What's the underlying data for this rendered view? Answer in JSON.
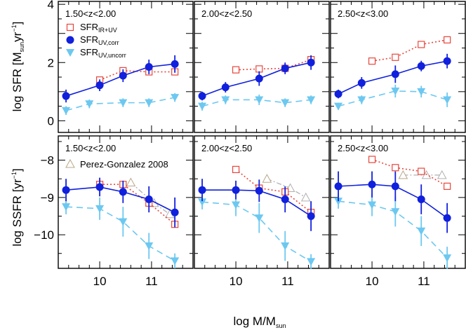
{
  "xlabel": {
    "main": "log M/M",
    "sub": "sun"
  },
  "legend": {
    "items": [
      {
        "key": "ir",
        "main": "SFR",
        "sub": "IR+UV"
      },
      {
        "key": "corr",
        "main": "SFR",
        "sub": "UV,corr"
      },
      {
        "key": "uncorr",
        "main": "SFR",
        "sub": "UV,uncorr"
      }
    ],
    "pg_label": "Perez-Gonzalez 2008"
  },
  "colors": {
    "ir": "#e8463c",
    "corr": "#1020dd",
    "uncorr": "#6cc8f0",
    "pg": "#b0b0b0",
    "pg_first": "#b8a888"
  },
  "chart_data": [
    {
      "type": "line",
      "ylabel": {
        "main": "log SFR [M",
        "sub": "sun",
        "tail": "yr",
        "sup": "−1",
        "close": "]"
      },
      "ylim": [
        -0.4,
        4.1
      ],
      "yticks": [
        0,
        2,
        4
      ],
      "xlim": [
        9.2,
        11.8
      ],
      "xticks": [
        10,
        11
      ],
      "panels": [
        {
          "label": "1.50<z<2.00",
          "series": {
            "ir": {
              "x": [
                10.0,
                10.45,
                10.95,
                11.45
              ],
              "y": [
                1.4,
                1.72,
                1.68,
                1.68
              ]
            },
            "corr": {
              "x": [
                9.35,
                10.0,
                10.45,
                10.95,
                11.45
              ],
              "y": [
                0.85,
                1.22,
                1.55,
                1.85,
                1.95
              ],
              "err": [
                0.22,
                0.2,
                0.22,
                0.25,
                0.3
              ]
            },
            "uncorr": {
              "x": [
                9.35,
                9.8,
                10.45,
                10.95,
                11.45
              ],
              "y": [
                0.35,
                0.58,
                0.62,
                0.62,
                0.8
              ],
              "err": [
                0.15,
                0.15,
                0.15,
                0.15,
                0.15
              ]
            }
          }
        },
        {
          "label": "2.00<z<2.50",
          "series": {
            "ir": {
              "x": [
                10.0,
                10.45,
                10.95,
                11.45
              ],
              "y": [
                1.75,
                1.78,
                1.8,
                2.1
              ]
            },
            "corr": {
              "x": [
                9.35,
                9.8,
                10.45,
                10.95,
                11.45
              ],
              "y": [
                0.85,
                1.15,
                1.45,
                1.8,
                2.0
              ],
              "err": [
                0.15,
                0.18,
                0.25,
                0.2,
                0.25
              ]
            },
            "uncorr": {
              "x": [
                9.35,
                9.8,
                10.45,
                10.95,
                11.45
              ],
              "y": [
                0.5,
                0.72,
                0.72,
                0.62,
                0.72
              ],
              "err": [
                0.15,
                0.15,
                0.18,
                0.15,
                0.15
              ]
            }
          }
        },
        {
          "label": "2.50<z<3.00",
          "series": {
            "ir": {
              "x": [
                10.0,
                10.45,
                10.95,
                11.45
              ],
              "y": [
                2.05,
                2.18,
                2.62,
                2.78
              ]
            },
            "corr": {
              "x": [
                9.35,
                9.8,
                10.45,
                10.95,
                11.45
              ],
              "y": [
                0.92,
                1.3,
                1.6,
                1.88,
                2.05
              ],
              "err": [
                0.15,
                0.2,
                0.3,
                0.18,
                0.25
              ]
            },
            "uncorr": {
              "x": [
                9.35,
                9.8,
                10.45,
                10.95,
                11.45
              ],
              "y": [
                0.5,
                0.72,
                1.02,
                1.0,
                0.72
              ],
              "err": [
                0.12,
                0.15,
                0.22,
                0.2,
                0.25
              ]
            }
          }
        }
      ]
    },
    {
      "type": "line",
      "ylabel": {
        "main": "log SSFR [yr",
        "sup": "−1",
        "close": "]"
      },
      "ylim": [
        -10.9,
        -7.35
      ],
      "yticks": [
        -8,
        -9,
        -10
      ],
      "yticklabels": [
        "−8",
        "−9",
        "−10"
      ],
      "xlim": [
        9.2,
        11.8
      ],
      "xticks": [
        10,
        11
      ],
      "panels": [
        {
          "label": "1.50<z<2.00",
          "series": {
            "ir": {
              "x": [
                10.0,
                10.45,
                10.95,
                11.45
              ],
              "y": [
                -8.65,
                -8.65,
                -9.15,
                -9.72
              ]
            },
            "corr": {
              "x": [
                9.35,
                10.0,
                10.45,
                10.95,
                11.45
              ],
              "y": [
                -8.8,
                -8.72,
                -8.85,
                -9.05,
                -9.4
              ],
              "err": [
                0.3,
                0.25,
                0.3,
                0.35,
                0.4
              ]
            },
            "uncorr": {
              "x": [
                9.35,
                10.0,
                10.45,
                10.95,
                11.45
              ],
              "y": [
                -9.25,
                -9.3,
                -9.65,
                -10.3,
                -10.7
              ],
              "err": [
                0.2,
                0.3,
                0.4,
                0.35,
                0.2
              ]
            },
            "pg": {
              "x": [
                10.6,
                11.05,
                11.35
              ],
              "y": [
                -8.6,
                -9.15,
                -9.45
              ]
            }
          }
        },
        {
          "label": "2.00<z<2.50",
          "series": {
            "ir": {
              "x": [
                10.0,
                10.45,
                10.95,
                11.45
              ],
              "y": [
                -8.25,
                -8.75,
                -8.85,
                -9.4
              ]
            },
            "corr": {
              "x": [
                9.35,
                10.0,
                10.45,
                10.95,
                11.45
              ],
              "y": [
                -8.8,
                -8.8,
                -8.82,
                -9.05,
                -9.5
              ],
              "err": [
                0.3,
                0.25,
                0.3,
                0.35,
                0.4
              ]
            },
            "uncorr": {
              "x": [
                9.35,
                10.0,
                10.45,
                10.95,
                11.45
              ],
              "y": [
                -9.12,
                -9.2,
                -9.55,
                -10.3,
                -10.72
              ],
              "err": [
                0.2,
                0.3,
                0.4,
                0.4,
                0.2
              ]
            },
            "pg": {
              "x": [
                10.6,
                11.05,
                11.35
              ],
              "y": [
                -8.5,
                -8.75,
                -9.0
              ]
            }
          }
        },
        {
          "label": "2.50<z<3.00",
          "series": {
            "ir": {
              "x": [
                10.0,
                10.45,
                10.95,
                11.45
              ],
              "y": [
                -7.98,
                -8.2,
                -8.3,
                -8.7
              ]
            },
            "corr": {
              "x": [
                9.35,
                10.0,
                10.45,
                10.95,
                11.45
              ],
              "y": [
                -8.7,
                -8.65,
                -8.7,
                -9.05,
                -9.55
              ],
              "err": [
                0.4,
                0.35,
                0.4,
                0.4,
                0.4
              ]
            },
            "uncorr": {
              "x": [
                9.35,
                10.0,
                10.45,
                10.95,
                11.45
              ],
              "y": [
                -9.1,
                -9.2,
                -9.38,
                -9.9,
                -10.62
              ],
              "err": [
                0.2,
                0.3,
                0.4,
                0.4,
                0.3
              ]
            },
            "pg": {
              "x": [
                10.6,
                11.05,
                11.35
              ],
              "y": [
                -8.4,
                -8.4,
                -8.4
              ]
            }
          }
        }
      ]
    }
  ]
}
